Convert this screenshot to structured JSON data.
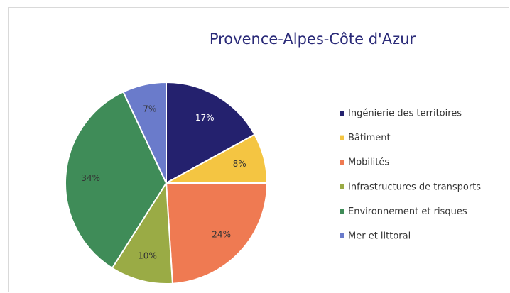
{
  "chart_data": {
    "type": "pie",
    "title": "Provence-Alpes-Côte d'Azur",
    "categories": [
      "Ingénierie des territoires",
      "Bâtiment",
      "Mobilités",
      "Infrastructures de transports",
      "Environnement et risques",
      "Mer et littoral"
    ],
    "values": [
      17,
      8,
      24,
      10,
      34,
      7
    ],
    "value_labels": [
      "17%",
      "8%",
      "24%",
      "10%",
      "34%",
      "7%"
    ],
    "colors": [
      "#24216e",
      "#f4c542",
      "#ef7a52",
      "#9aab45",
      "#3f8c58",
      "#6a7bcb"
    ],
    "legend": "right"
  }
}
